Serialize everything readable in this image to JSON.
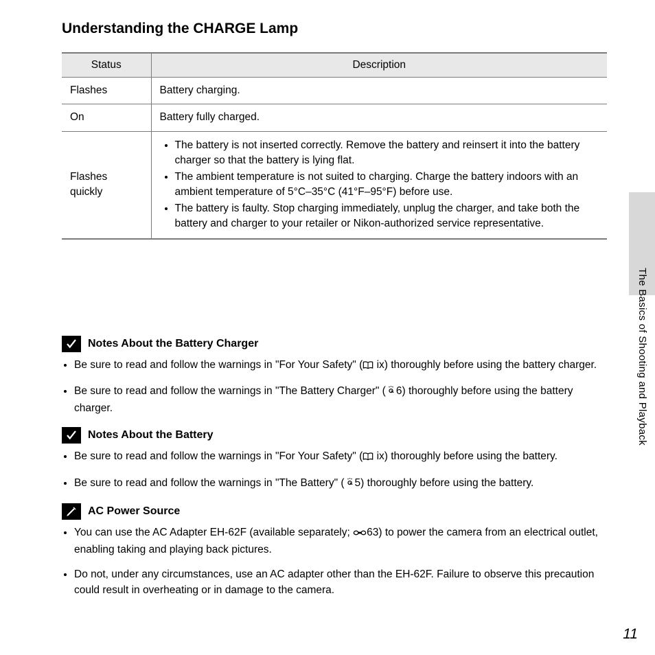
{
  "heading": "Understanding the CHARGE Lamp",
  "table": {
    "headers": [
      "Status",
      "Description"
    ],
    "rows": [
      {
        "status": "Flashes",
        "desc_type": "text",
        "desc": "Battery charging."
      },
      {
        "status": "On",
        "desc_type": "text",
        "desc": "Battery fully charged."
      },
      {
        "status": "Flashes quickly",
        "desc_type": "list",
        "items": [
          "The battery is not inserted correctly. Remove the battery and reinsert it into the battery charger so that the battery is lying flat.",
          "The ambient temperature is not suited to charging. Charge the battery indoors with an ambient temperature of 5°C–35°C (41°F–95°F) before use.",
          "The battery is faulty. Stop charging immediately, unplug the charger, and take both the battery and charger to your retailer or Nikon-authorized service representative."
        ]
      }
    ]
  },
  "side_label": "The Basics of Shooting and Playback",
  "sections": [
    {
      "icon": "check",
      "title": "Notes About the Battery Charger",
      "bullets": [
        {
          "pre": "Be sure to read and follow the warnings in \"For Your Safety\" (",
          "ref_icon": "book",
          "ref": " ix) thoroughly before using the battery charger."
        },
        {
          "pre": "Be sure to read and follow the warnings in \"The Battery Charger\" (",
          "ref_icon": "sun",
          "ref": "6) thoroughly before using the battery charger."
        }
      ]
    },
    {
      "icon": "check",
      "title": "Notes About the Battery",
      "bullets": [
        {
          "pre": "Be sure to read and follow the warnings in \"For Your Safety\" (",
          "ref_icon": "book",
          "ref": " ix) thoroughly before using the battery."
        },
        {
          "pre": "Be sure to read and follow the warnings in \"The Battery\" (",
          "ref_icon": "sun",
          "ref": "5) thoroughly before using the battery."
        }
      ]
    },
    {
      "icon": "pencil",
      "title": "AC Power Source",
      "bullets": [
        {
          "pre": "You can use the AC Adapter EH-62F (available separately; ",
          "ref_icon": "chain",
          "ref": "63) to power the camera from an electrical outlet, enabling taking and playing back pictures."
        },
        {
          "pre": "Do not, under any circumstances, use an AC adapter other than the EH-62F. Failure to observe this precaution could result in overheating or in damage to the camera.",
          "ref_icon": null,
          "ref": ""
        }
      ]
    }
  ],
  "page_number": "11",
  "colors": {
    "header_bg": "#e8e8e8",
    "border": "#7a7a7a",
    "tab_bg": "#d8d8d8",
    "badge_bg": "#000000"
  }
}
